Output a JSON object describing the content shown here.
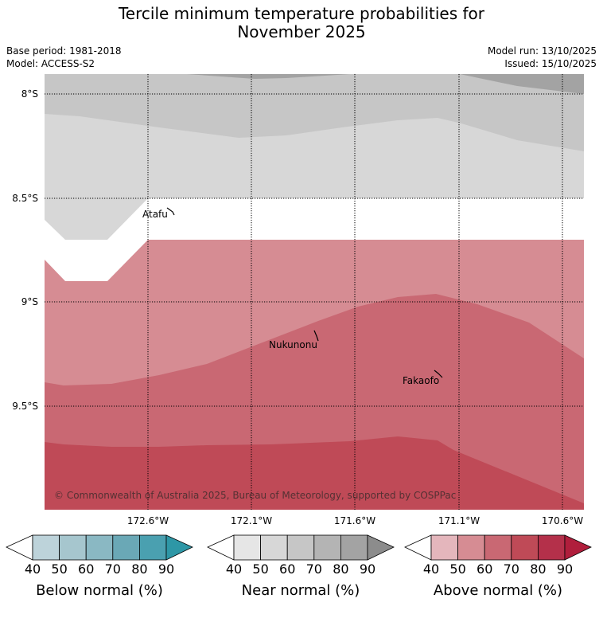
{
  "title": {
    "line1": "Tercile minimum temperature probabilities for",
    "line2": "November 2025"
  },
  "meta": {
    "base_period": "Base period: 1981-2018",
    "model": "Model: ACCESS-S2",
    "model_run": "Model run: 13/10/2025",
    "issued": "Issued: 15/10/2025"
  },
  "map": {
    "latitude_labels": [
      "8°S",
      "8.5°S",
      "9°S",
      "9.5°S"
    ],
    "longitude_labels": [
      "172.6°W",
      "172.1°W",
      "171.6°W",
      "171.1°W",
      "170.6°W"
    ],
    "places": [
      {
        "name": "Atafu"
      },
      {
        "name": "Nukunonu"
      },
      {
        "name": "Fakaofo"
      }
    ],
    "copyright": "© Commonwealth of Australia 2025, Bureau of Meteorology, supported by COSPPac"
  },
  "colorbars": [
    {
      "label": "Below normal (%)",
      "ticks": [
        "40",
        "50",
        "60",
        "70",
        "80",
        "90"
      ],
      "colors": [
        "#ffffff",
        "#bdd3da",
        "#a6c6ce",
        "#8ab8c3",
        "#6aa8b6",
        "#4aa0b0",
        "#2e97a6"
      ]
    },
    {
      "label": "Near normal (%)",
      "ticks": [
        "40",
        "50",
        "60",
        "70",
        "80",
        "90"
      ],
      "colors": [
        "#ffffff",
        "#e6e6e6",
        "#d7d7d7",
        "#c6c6c6",
        "#b4b4b4",
        "#a3a3a3",
        "#8c8c8c"
      ]
    },
    {
      "label": "Above normal (%)",
      "ticks": [
        "40",
        "50",
        "60",
        "70",
        "80",
        "90"
      ],
      "colors": [
        "#ffffff",
        "#e4b6bc",
        "#d68c93",
        "#c96873",
        "#bf4a57",
        "#b4304a",
        "#b01e3c"
      ]
    }
  ],
  "colors": {
    "near_60": "#d7d7d7",
    "near_70": "#c6c6c6",
    "near_80": "#a3a3a3",
    "above_50": "#d68c93",
    "above_60": "#c96873",
    "above_70": "#bf4a57"
  }
}
